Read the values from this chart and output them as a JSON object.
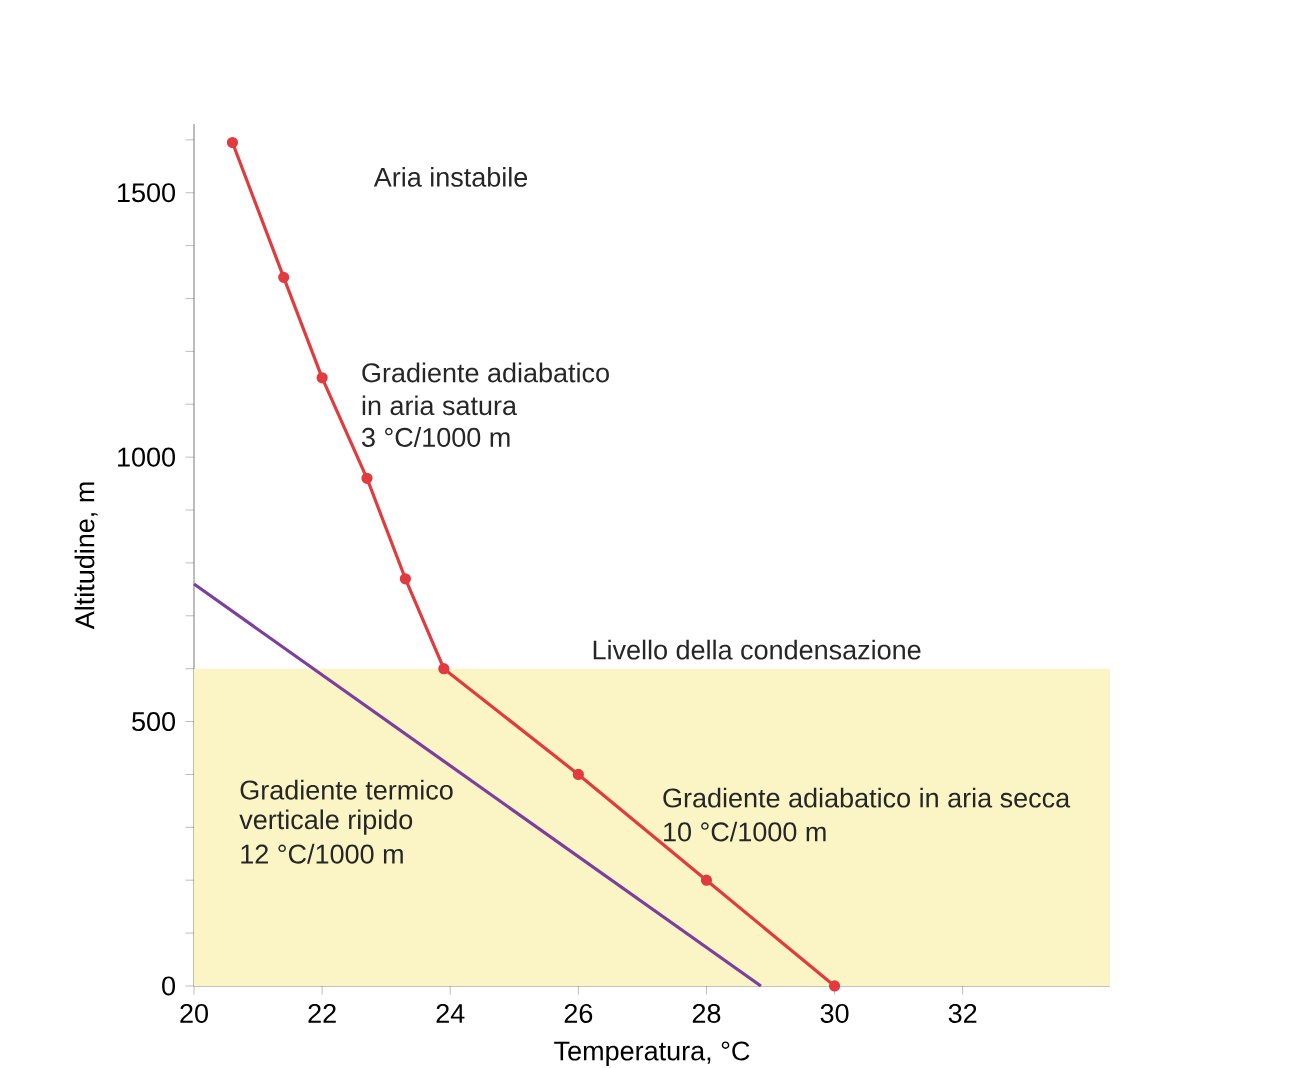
{
  "chart_data": {
    "type": "line",
    "xlabel": "Temperatura, °C",
    "ylabel": "Altitudine, m",
    "xlim": [
      20,
      34.3
    ],
    "ylim": [
      0,
      1630
    ],
    "xticks": [
      20,
      22,
      24,
      26,
      28,
      30,
      32
    ],
    "yticks": [
      0,
      {
        "value": 100,
        "label": null
      },
      {
        "value": 200,
        "label": null
      },
      {
        "value": 300,
        "label": null
      },
      {
        "value": 400,
        "label": null
      },
      500,
      {
        "value": 600,
        "label": null
      },
      {
        "value": 700,
        "label": null
      },
      {
        "value": 800,
        "label": null
      },
      {
        "value": 900,
        "label": null
      },
      1000,
      {
        "value": 1100,
        "label": null
      },
      {
        "value": 1200,
        "label": null
      },
      {
        "value": 1300,
        "label": null
      },
      {
        "value": 1400,
        "label": null
      },
      1500,
      {
        "value": 1600,
        "label": null
      }
    ],
    "series": [
      {
        "color": "#e23b3f",
        "marker": "circle",
        "x": [
          30,
          28,
          26,
          23.9,
          23.3,
          22.7,
          22.0,
          21.4,
          20.6
        ],
        "values": [
          0,
          200,
          400,
          600,
          770,
          960,
          1150,
          1340,
          1595
        ]
      },
      {
        "color": "#7b3f9e",
        "marker": "none",
        "x": [
          20,
          28.85
        ],
        "values": [
          760,
          0
        ]
      }
    ],
    "bands": [
      {
        "axis": "y",
        "from": 0,
        "to": 600,
        "color": "#fbf4c4"
      }
    ],
    "annotations": [
      "Aria instabile",
      "Gradiente adiabatico",
      "in aria satura",
      "3 °C/1000 m",
      "Livello della condensazione",
      "Gradiente termico",
      "verticale ripido",
      "12 °C/1000 m",
      "Gradiente adiabatico in aria secca",
      "10 °C/1000 m"
    ],
    "grid": false
  }
}
